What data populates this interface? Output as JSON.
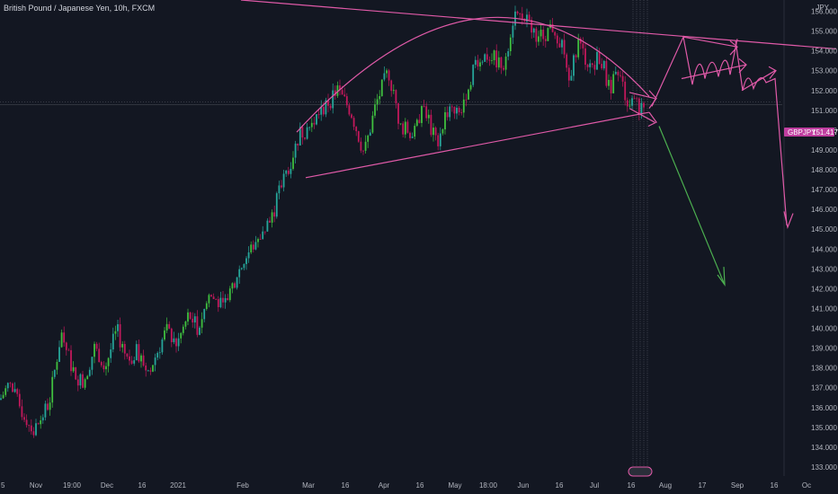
{
  "header": {
    "title": "British Pound / Japanese Yen, 10h, FXCM",
    "unit": "JPY"
  },
  "colors": {
    "background": "#131722",
    "up": "#26a69a",
    "up_bright": "#3fbf3f",
    "down": "#c2185b",
    "drawing": "#e05aa8",
    "projection": "#e05aa8",
    "green_arrow": "#4caf50",
    "badge": "#c03ea0"
  },
  "price_badge": {
    "symbol": "GBPJPY",
    "value": "151.417"
  },
  "chart_data": {
    "type": "candlestick",
    "title": "British Pound / Japanese Yen, 10h, FXCM",
    "ylabel": "JPY",
    "ylim": [
      132.5,
      156.8
    ],
    "y_ticks": [
      "156.000",
      "155.000",
      "154.000",
      "153.000",
      "152.000",
      "151.000",
      "150.000",
      "149.000",
      "148.000",
      "147.000",
      "146.000",
      "145.000",
      "144.000",
      "143.000",
      "142.000",
      "141.000",
      "140.000",
      "139.000",
      "138.000",
      "137.000",
      "136.000",
      "135.000",
      "134.000",
      "133.000"
    ],
    "x_ticks": [
      "5",
      "Nov",
      "19:00",
      "Dec",
      "16",
      "2021",
      "Feb",
      "Mar",
      "16",
      "Apr",
      "16",
      "May",
      "18:00",
      "Jun",
      "16",
      "Jul",
      "16",
      "Aug",
      "17",
      "Sep",
      "16",
      "Oc"
    ],
    "last_price": 151.417,
    "price_path": [
      [
        0,
        136.4
      ],
      [
        10,
        137.2
      ],
      [
        22,
        136.0
      ],
      [
        38,
        134.8
      ],
      [
        55,
        136.3
      ],
      [
        68,
        139.8
      ],
      [
        80,
        138.0
      ],
      [
        92,
        137.2
      ],
      [
        105,
        139.0
      ],
      [
        118,
        138.2
      ],
      [
        130,
        139.9
      ],
      [
        142,
        138.3
      ],
      [
        152,
        138.8
      ],
      [
        165,
        137.8
      ],
      [
        172,
        138.5
      ],
      [
        185,
        139.9
      ],
      [
        197,
        139.2
      ],
      [
        210,
        140.7
      ],
      [
        220,
        140.0
      ],
      [
        233,
        141.7
      ],
      [
        248,
        141.0
      ],
      [
        262,
        142.6
      ],
      [
        275,
        143.7
      ],
      [
        290,
        144.8
      ],
      [
        302,
        145.5
      ],
      [
        312,
        147.1
      ],
      [
        322,
        148.3
      ],
      [
        333,
        149.8
      ],
      [
        345,
        150.2
      ],
      [
        360,
        151.1
      ],
      [
        375,
        152.0
      ],
      [
        390,
        151.0
      ],
      [
        405,
        148.8
      ],
      [
        418,
        151.3
      ],
      [
        432,
        153.0
      ],
      [
        445,
        150.2
      ],
      [
        462,
        149.8
      ],
      [
        470,
        151.5
      ],
      [
        485,
        149.3
      ],
      [
        497,
        151.0
      ],
      [
        510,
        150.7
      ],
      [
        520,
        152.2
      ],
      [
        530,
        153.6
      ],
      [
        545,
        153.8
      ],
      [
        560,
        153.3
      ],
      [
        572,
        155.9
      ],
      [
        585,
        155.5
      ],
      [
        600,
        154.7
      ],
      [
        615,
        155.2
      ],
      [
        625,
        154.4
      ],
      [
        633,
        152.0
      ],
      [
        642,
        154.5
      ],
      [
        655,
        153.3
      ],
      [
        668,
        153.7
      ],
      [
        678,
        152.1
      ],
      [
        688,
        152.8
      ],
      [
        698,
        151.5
      ],
      [
        710,
        151.2
      ],
      [
        718,
        151.4
      ]
    ],
    "drawings": {
      "descending_trendline": {
        "from": [
          "Oct (left)",
          157.1
        ],
        "to": [
          "Oct (right)",
          154.1
        ]
      },
      "rising_support": {
        "from": [
          "Mar",
          147.6
        ],
        "to": [
          "Jul 16",
          150.9
        ]
      },
      "rounding_top_arc": {
        "from": [
          "late Feb",
          149.9
        ],
        "peak": [
          "Jun",
          156.2
        ],
        "to": [
          "Jul 16",
          151.7
        ]
      },
      "projection_path_bearish": "153.2 → 154.7 zig-zag → 152.6 → 145.2",
      "green_arrow": {
        "from": 150.2,
        "to": 142.3
      }
    }
  }
}
